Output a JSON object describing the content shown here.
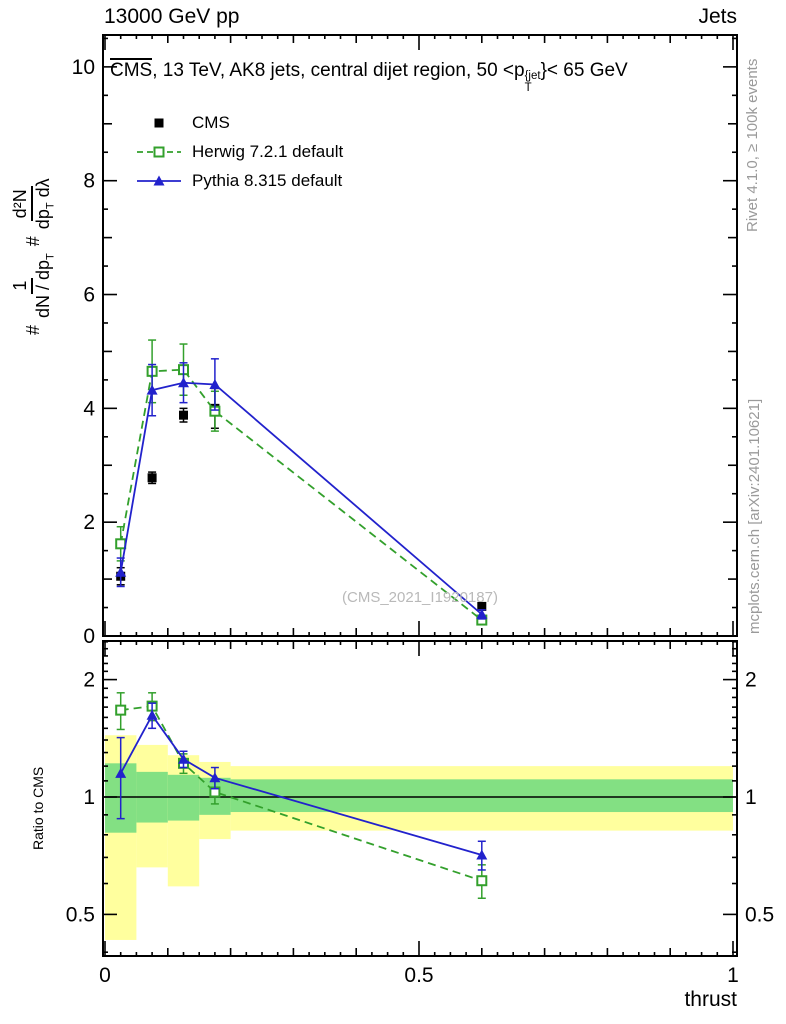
{
  "header": {
    "left": "13000 GeV pp",
    "right": "Jets"
  },
  "side_notes": {
    "top_right": "Rivet 4.1.0, ≥ 100k events",
    "bottom_right": "mcplots.cern.ch [arXiv:2401.10621]"
  },
  "plot": {
    "title": {
      "cms": "CMS",
      "mid": ", 13 TeV, AK8 jets, central dijet region, 50 <p",
      "sup": "{jet",
      "sub": "T",
      "end": "}< 65 GeV"
    },
    "ylabel": {
      "hash1": "#",
      "f1_num": "1",
      "f1_den": "dN / dp",
      "f1_den_sub": "T",
      "hash2": "#",
      "f2_num": "d²N",
      "f2_den_a": "dp",
      "f2_den_sub": "T",
      "f2_den_b": " dλ"
    },
    "ratio_label": "Ratio to CMS",
    "watermark": "(CMS_2021_I1920187)"
  },
  "chart_data": {
    "type": "line",
    "title": "CMS, 13 TeV, AK8 jets, central dijet region, 50 < pT^{jet} < 65 GeV",
    "xlabel": "thrust",
    "ylabel": "1/(dN/dpT) d²N/(dpT dλ)",
    "ratio_ylabel": "Ratio to CMS",
    "legend_position": "top-left",
    "grid": false,
    "xlim": [
      0,
      1
    ],
    "main_ylim": [
      0,
      10.56
    ],
    "main_yticks": [
      0,
      2,
      4,
      6,
      8,
      10
    ],
    "xticks": [
      {
        "v": 0,
        "label": "0"
      },
      {
        "v": 0.5,
        "label": "0.5"
      },
      {
        "v": 1,
        "label": "1"
      }
    ],
    "ratio_scale": "log",
    "ratio_yticks": [
      {
        "v": 0.5,
        "label": "0.5"
      },
      {
        "v": 1,
        "label": "1"
      },
      {
        "v": 2,
        "label": "2"
      }
    ],
    "x": [
      0.025,
      0.075,
      0.125,
      0.175,
      0.6
    ],
    "bin_edges": [
      0,
      0.05,
      0.1,
      0.15,
      0.2,
      1.0
    ],
    "series": [
      {
        "name": "CMS",
        "color": "#000000",
        "marker": "square-filled",
        "line": "none",
        "values": [
          1.05,
          2.78,
          3.88,
          4.0,
          0.52
        ],
        "errors": [
          0.15,
          0.1,
          0.12,
          0.35,
          0.06
        ]
      },
      {
        "name": "Herwig 7.2.1 default",
        "color": "#33a02c",
        "marker": "square-open",
        "line": "dashed",
        "values": [
          1.62,
          4.65,
          4.68,
          3.95,
          0.28
        ],
        "errors": [
          0.3,
          0.55,
          0.45,
          0.35,
          0.08
        ],
        "ratio_values": [
          1.67,
          1.71,
          1.22,
          1.03,
          0.61
        ],
        "ratio_errors": [
          0.18,
          0.14,
          0.07,
          0.07,
          0.06
        ]
      },
      {
        "name": "Pythia 8.315 default",
        "color": "#2222cc",
        "marker": "triangle-filled",
        "line": "solid",
        "values": [
          1.12,
          4.32,
          4.45,
          4.42,
          0.38
        ],
        "errors": [
          0.25,
          0.45,
          0.35,
          0.45,
          0.08
        ],
        "ratio_values": [
          1.15,
          1.62,
          1.25,
          1.12,
          0.71
        ],
        "ratio_errors": [
          0.27,
          0.12,
          0.06,
          0.07,
          0.06
        ]
      }
    ],
    "bands": [
      {
        "x0": 0.0,
        "x1": 0.05,
        "yellow": [
          0.43,
          1.44
        ],
        "green": [
          0.81,
          1.22
        ]
      },
      {
        "x0": 0.05,
        "x1": 0.1,
        "yellow": [
          0.66,
          1.36
        ],
        "green": [
          0.86,
          1.16
        ]
      },
      {
        "x0": 0.1,
        "x1": 0.15,
        "yellow": [
          0.59,
          1.28
        ],
        "green": [
          0.87,
          1.14
        ]
      },
      {
        "x0": 0.15,
        "x1": 0.2,
        "yellow": [
          0.78,
          1.23
        ],
        "green": [
          0.9,
          1.12
        ]
      },
      {
        "x0": 0.2,
        "x1": 1.0,
        "yellow": [
          0.82,
          1.2
        ],
        "green": [
          0.915,
          1.11
        ]
      }
    ],
    "band_colors": {
      "outer": "#ffff9e",
      "inner": "#83e083"
    }
  }
}
